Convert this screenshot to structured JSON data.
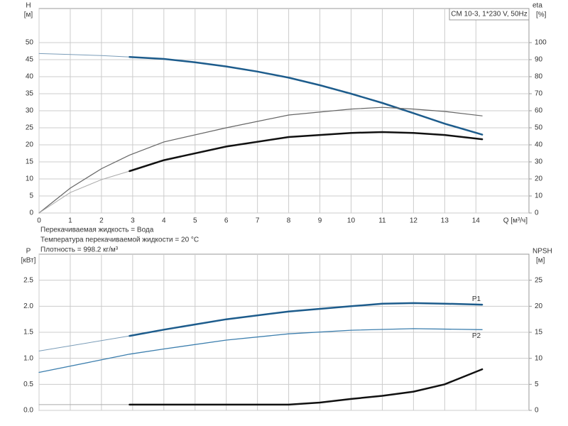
{
  "chart_data": [
    {
      "type": "line",
      "title": "CM 10-3, 1*230 V, 50Hz",
      "ylabel": "H",
      "yunit": "[м]",
      "y2label": "eta",
      "y2unit": "[%]",
      "xlabel": "Q [м³/ч]",
      "annotations": [
        "Перекачиваемая жидкость = Вода",
        "Температура перекачиваемой жидкости = 20 °C",
        "Плотность = 998.2 кг/м³"
      ],
      "xlim": [
        0,
        15.7
      ],
      "xticks": [
        0,
        1,
        2,
        3,
        4,
        5,
        6,
        7,
        8,
        9,
        10,
        11,
        12,
        13,
        14
      ],
      "ylim": [
        0,
        60
      ],
      "yticks": [
        0,
        5,
        10,
        15,
        20,
        25,
        30,
        35,
        40,
        45,
        50
      ],
      "y2lim": [
        0,
        120
      ],
      "y2ticks": [
        0,
        10,
        20,
        30,
        40,
        50,
        60,
        70,
        80,
        90,
        100
      ],
      "grid": true,
      "series": [
        {
          "color": "#7a9cb8",
          "width": 1,
          "x": [
            0,
            1,
            2,
            2.9
          ],
          "values": [
            46.8,
            46.5,
            46.2,
            45.8
          ]
        },
        {
          "color": "#1d5c8c",
          "width": 2.5,
          "x": [
            2.9,
            4,
            5,
            6,
            7,
            8,
            9,
            10,
            11,
            12,
            13,
            14.2
          ],
          "values": [
            45.8,
            45.2,
            44.2,
            43,
            41.5,
            39.7,
            37.5,
            35,
            32.3,
            29.3,
            26.2,
            23
          ]
        },
        {
          "color": "#666666",
          "width": 1.2,
          "axis": "y2",
          "x": [
            0,
            1,
            2,
            2.9,
            4,
            6,
            8,
            10,
            11,
            12,
            13,
            14.2
          ],
          "values": [
            0,
            14.6,
            26,
            34,
            41.7,
            50,
            57.5,
            61,
            62,
            61,
            59.6,
            57
          ]
        },
        {
          "color": "#aaaaaa",
          "width": 1,
          "axis": "y2",
          "x": [
            0,
            1,
            2,
            2.9
          ],
          "values": [
            0,
            12,
            19.6,
            24.6
          ]
        },
        {
          "color": "#111111",
          "width": 2.5,
          "axis": "y2",
          "x": [
            2.9,
            4,
            6,
            8,
            10,
            11,
            12,
            13,
            14.2
          ],
          "values": [
            24.6,
            31,
            39,
            44.6,
            47,
            47.5,
            47,
            45.8,
            43.3
          ]
        }
      ]
    },
    {
      "type": "line",
      "ylabel": "P",
      "yunit": "[кВт]",
      "y2label": "NPSH",
      "y2unit": "[м]",
      "xlim": [
        0,
        15.7
      ],
      "xticks": [
        0,
        1,
        2,
        3,
        4,
        5,
        6,
        7,
        8,
        9,
        10,
        11,
        12,
        13,
        14
      ],
      "xtick_labels": false,
      "ylim": [
        0,
        3
      ],
      "yticks": [
        {
          "value": 0,
          "label": "0.0"
        },
        0.5,
        {
          "value": 1,
          "label": "1.0"
        },
        1.5,
        {
          "value": 2,
          "label": "2.0"
        },
        2.5
      ],
      "y2lim": [
        0,
        30
      ],
      "y2ticks": [
        0,
        5,
        10,
        15,
        20,
        25
      ],
      "grid": true,
      "series": [
        {
          "color": "#7a9cb8",
          "width": 1,
          "x": [
            0,
            2.9
          ],
          "values": [
            1.14,
            1.43
          ]
        },
        {
          "name": "P1",
          "color": "#1d5c8c",
          "width": 2.5,
          "x": [
            2.9,
            4,
            6,
            8,
            10,
            11,
            12,
            13,
            14.2
          ],
          "values": [
            1.43,
            1.55,
            1.75,
            1.9,
            2.0,
            2.05,
            2.06,
            2.05,
            2.03
          ]
        },
        {
          "name": "P2",
          "color": "#3d7fae",
          "width": 1.3,
          "x": [
            0,
            2.9,
            4,
            6,
            8,
            10,
            12,
            14.2
          ],
          "values": [
            0.73,
            1.08,
            1.18,
            1.35,
            1.47,
            1.54,
            1.57,
            1.55
          ]
        },
        {
          "color": "#aaaaaa",
          "width": 1,
          "axis": "y2",
          "x": [
            0,
            2.9
          ],
          "values": [
            1.1,
            1.1
          ]
        },
        {
          "color": "#111111",
          "width": 2.5,
          "axis": "y2",
          "x": [
            2.9,
            4,
            6,
            8,
            9,
            10,
            11,
            12,
            13,
            14.2
          ],
          "values": [
            1.1,
            1.1,
            1.1,
            1.1,
            1.5,
            2.2,
            2.8,
            3.6,
            5.0,
            7.9
          ]
        }
      ]
    }
  ]
}
